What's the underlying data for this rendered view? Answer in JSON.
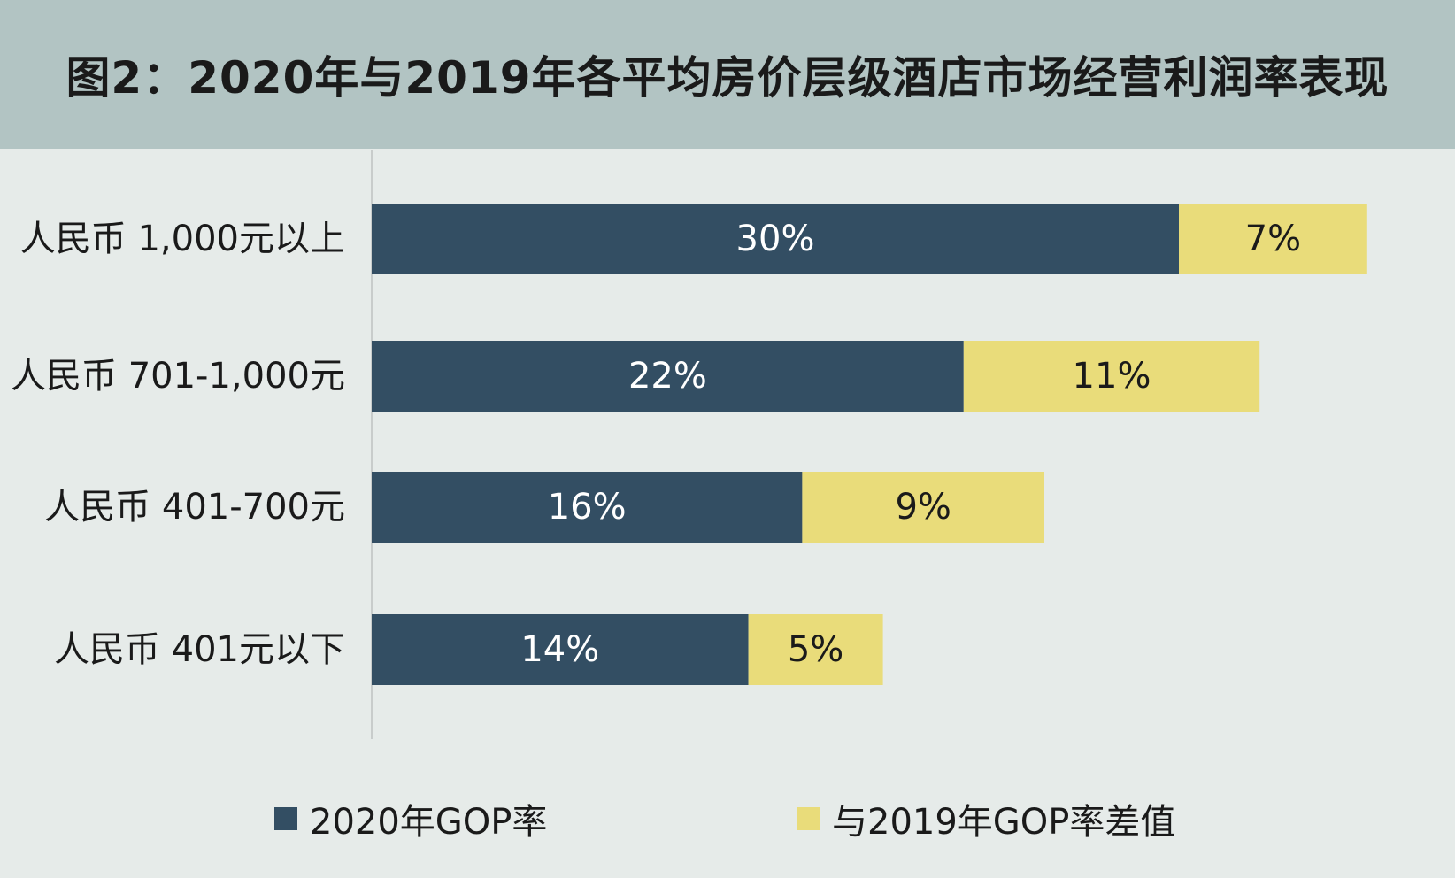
{
  "title": "图2：2020年与2019年各平均房价层级酒店市场经营利润率表现",
  "colors": {
    "header_bg": "#b2c4c3",
    "plot_bg": "#e6ebe9",
    "series_gop_2020": "#334e63",
    "series_diff": "#e9dc7a",
    "axis": "#c8cccb"
  },
  "chart_data": {
    "type": "bar",
    "orientation": "horizontal",
    "stacked": true,
    "categories": [
      "人民币 1,000元以上",
      "人民币 701-1,000元",
      "人民币 401-700元",
      "人民币 401元以下"
    ],
    "series": [
      {
        "name": "2020年GOP率",
        "values": [
          30,
          22,
          16,
          14
        ],
        "labels": [
          "30%",
          "22%",
          "16%",
          "14%"
        ]
      },
      {
        "name": "与2019年GOP率差值",
        "values": [
          7,
          11,
          9,
          5
        ],
        "labels": [
          "7%",
          "11%",
          "9%",
          "5%"
        ]
      }
    ],
    "xlim": [
      0,
      40
    ],
    "grid": false,
    "legend": "bottom"
  },
  "legend": [
    {
      "label": "2020年GOP率"
    },
    {
      "label": "与2019年GOP率差值"
    }
  ]
}
